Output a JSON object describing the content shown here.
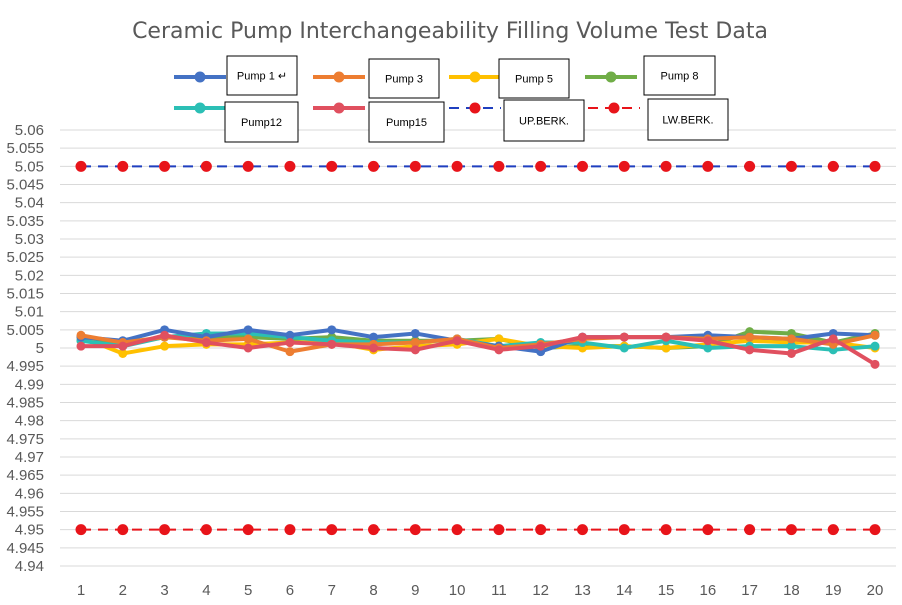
{
  "chart_data": {
    "type": "line",
    "title": "Ceramic Pump Interchangeability Filling Volume Test Data",
    "xlabel": "",
    "ylabel": "",
    "x": [
      1,
      2,
      3,
      4,
      5,
      6,
      7,
      8,
      9,
      10,
      11,
      12,
      13,
      14,
      15,
      16,
      17,
      18,
      19,
      20
    ],
    "ylim": [
      4.94,
      5.06
    ],
    "ytick_step": 0.005,
    "yticks": [
      "4.94",
      "4.945",
      "4.95",
      "4.955",
      "4.96",
      "4.965",
      "4.97",
      "4.975",
      "4.98",
      "4.985",
      "4.99",
      "4.995",
      "5",
      "5.005",
      "5.01",
      "5.015",
      "5.02",
      "5.025",
      "5.03",
      "5.035",
      "5.04",
      "5.045",
      "5.05",
      "5.055",
      "5.06"
    ],
    "grid": "horizontal",
    "series": [
      {
        "name": "Pump 1 ↵",
        "color": "#4472C4",
        "style": "solid",
        "values": [
          5.003,
          5.002,
          5.005,
          5.003,
          5.005,
          5.0035,
          5.005,
          5.003,
          5.004,
          5.002,
          5.0005,
          4.999,
          5.003,
          5.003,
          5.003,
          5.0035,
          5.003,
          5.0025,
          5.004,
          5.0035
        ]
      },
      {
        "name": "Pump 3",
        "color": "#ED7D31",
        "style": "solid",
        "values": [
          5.0035,
          5.0015,
          5.003,
          5.002,
          5.0025,
          4.999,
          5.001,
          5.001,
          5.0015,
          5.0025,
          5.0,
          5.001,
          5.0025,
          5.003,
          5.003,
          5.0025,
          5.003,
          5.0025,
          5.001,
          5.0035
        ]
      },
      {
        "name": "Pump 5",
        "color": "#FFC000",
        "style": "solid",
        "values": [
          5.003,
          4.9985,
          5.0005,
          5.001,
          5.001,
          5.0015,
          5.0015,
          4.9995,
          5.0005,
          5.001,
          5.0025,
          5.0005,
          5.0,
          5.0005,
          5.0,
          5.001,
          5.002,
          5.0015,
          5.0015,
          5.0
        ]
      },
      {
        "name": "Pump 8",
        "color": "#70AD47",
        "style": "solid",
        "values": [
          5.002,
          5.001,
          5.003,
          5.003,
          5.003,
          5.0025,
          5.003,
          5.002,
          5.002,
          5.002,
          5.0025,
          5.0,
          5.0005,
          5.0005,
          5.0,
          5.0005,
          5.0045,
          5.004,
          5.0015,
          5.004
        ]
      },
      {
        "name": "Pump12",
        "color": "#2BBFB5",
        "style": "solid",
        "values": [
          5.002,
          5.0005,
          5.003,
          5.004,
          5.004,
          5.003,
          5.002,
          5.0015,
          5.0015,
          5.0025,
          5.0005,
          5.0015,
          5.0015,
          5.0,
          5.002,
          5.0,
          5.0005,
          5.0005,
          4.9995,
          5.0005
        ]
      },
      {
        "name": "Pump15",
        "color": "#E0505F",
        "style": "solid",
        "values": [
          5.0005,
          5.0005,
          5.0035,
          5.0015,
          5.0,
          5.0015,
          5.001,
          5.0,
          4.9995,
          5.002,
          4.9995,
          5.0005,
          5.003,
          5.003,
          5.003,
          5.002,
          4.9995,
          4.9985,
          5.0025,
          4.9955
        ]
      },
      {
        "name": "UP.BERK.",
        "color": "#1F3FBF",
        "style": "dashed",
        "marker_color": "#E8141A",
        "values": [
          5.05,
          5.05,
          5.05,
          5.05,
          5.05,
          5.05,
          5.05,
          5.05,
          5.05,
          5.05,
          5.05,
          5.05,
          5.05,
          5.05,
          5.05,
          5.05,
          5.05,
          5.05,
          5.05,
          5.05
        ]
      },
      {
        "name": "LW.BERK.",
        "color": "#E8141A",
        "style": "dashed",
        "marker_color": "#E8141A",
        "values": [
          4.95,
          4.95,
          4.95,
          4.95,
          4.95,
          4.95,
          4.95,
          4.95,
          4.95,
          4.95,
          4.95,
          4.95,
          4.95,
          4.95,
          4.95,
          4.95,
          4.95,
          4.95,
          4.95,
          4.95
        ]
      }
    ]
  }
}
